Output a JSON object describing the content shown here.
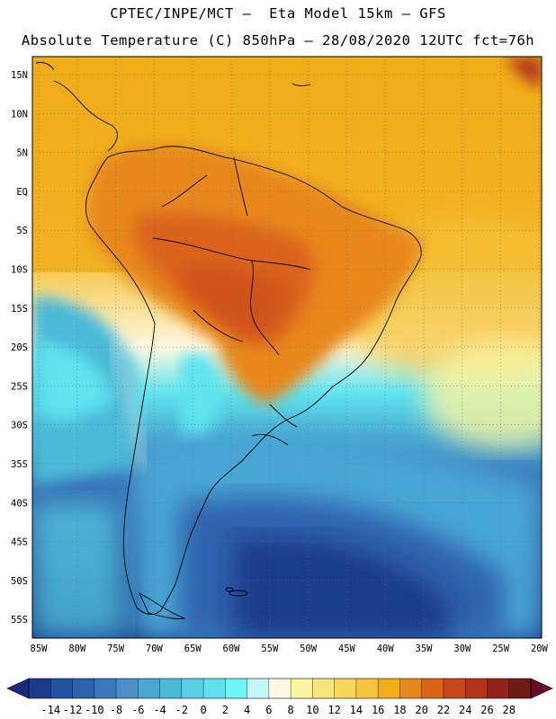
{
  "header": {
    "line1": "CPTEC/INPE/MCT –  Eta Model 15km – GFS",
    "line2": "Absolute Temperature (C) 850hPa – 28/08/2020 12UTC fct=76h"
  },
  "axes": {
    "lat_labels": [
      "15N",
      "10N",
      "5N",
      "EQ",
      "5S",
      "10S",
      "15S",
      "20S",
      "25S",
      "30S",
      "35S",
      "40S",
      "45S",
      "50S",
      "55S"
    ],
    "lon_labels": [
      "85W",
      "80W",
      "75W",
      "70W",
      "65W",
      "60W",
      "55W",
      "50W",
      "45W",
      "40W",
      "35W",
      "30W",
      "25W",
      "20W"
    ]
  },
  "colorbar": {
    "ticks": [
      "-14",
      "-12",
      "-10",
      "-8",
      "-6",
      "-4",
      "-2",
      "0",
      "2",
      "4",
      "6",
      "8",
      "10",
      "12",
      "14",
      "16",
      "18",
      "20",
      "22",
      "24",
      "26",
      "28"
    ],
    "colors": [
      "#1a3b8c",
      "#2451a0",
      "#2d62ae",
      "#3a78bb",
      "#4a8fc8",
      "#4aa6d4",
      "#4bbad8",
      "#58cfe3",
      "#5ee3ee",
      "#6ef6f6",
      "#c8f4fb",
      "#fdf8e1",
      "#fbf5a0",
      "#f9e57c",
      "#f7d65c",
      "#f4c43e",
      "#f0ad1a",
      "#e7871c",
      "#db631a",
      "#c9461a",
      "#b2321a",
      "#94221a",
      "#6d1a18"
    ],
    "under_color": "#1a2a7a",
    "over_color": "#6a0a2a"
  }
}
